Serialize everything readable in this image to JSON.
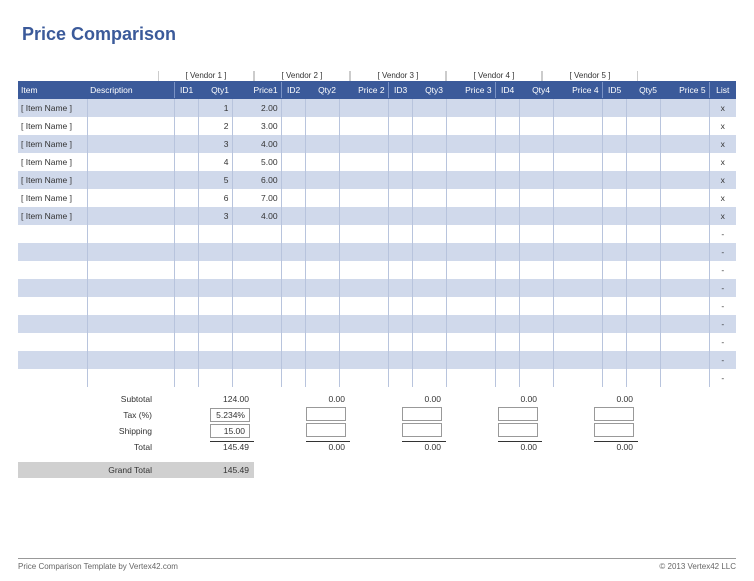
{
  "title": "Price Comparison",
  "vendors": [
    {
      "label": "[ Vendor 1 ]",
      "id_h": "ID1",
      "qty_h": "Qty1",
      "price_h": "Price1"
    },
    {
      "label": "[ Vendor 2 ]",
      "id_h": "ID2",
      "qty_h": "Qty2",
      "price_h": "Price 2"
    },
    {
      "label": "[ Vendor 3 ]",
      "id_h": "ID3",
      "qty_h": "Qty3",
      "price_h": "Price 3"
    },
    {
      "label": "[ Vendor 4 ]",
      "id_h": "ID4",
      "qty_h": "Qty4",
      "price_h": "Price 4"
    },
    {
      "label": "[ Vendor 5 ]",
      "id_h": "ID5",
      "qty_h": "Qty5",
      "price_h": "Price 5"
    }
  ],
  "headers": {
    "item": "Item",
    "desc": "Description",
    "list": "List"
  },
  "col_widths": {
    "item": 62,
    "desc": 78,
    "id": 22,
    "qty": 30,
    "price": 44,
    "list": 24
  },
  "rows": [
    {
      "item": "[ Item Name ]",
      "desc": "",
      "v": [
        {
          "id": "",
          "qty": "1",
          "price": "2.00"
        },
        {},
        {},
        {},
        {}
      ],
      "list": "x"
    },
    {
      "item": "[ Item Name ]",
      "desc": "",
      "v": [
        {
          "id": "",
          "qty": "2",
          "price": "3.00"
        },
        {},
        {},
        {},
        {}
      ],
      "list": "x"
    },
    {
      "item": "[ Item Name ]",
      "desc": "",
      "v": [
        {
          "id": "",
          "qty": "3",
          "price": "4.00"
        },
        {},
        {},
        {},
        {}
      ],
      "list": "x"
    },
    {
      "item": "[ Item Name ]",
      "desc": "",
      "v": [
        {
          "id": "",
          "qty": "4",
          "price": "5.00"
        },
        {},
        {},
        {},
        {}
      ],
      "list": "x"
    },
    {
      "item": "[ Item Name ]",
      "desc": "",
      "v": [
        {
          "id": "",
          "qty": "5",
          "price": "6.00"
        },
        {},
        {},
        {},
        {}
      ],
      "list": "x"
    },
    {
      "item": "[ Item Name ]",
      "desc": "",
      "v": [
        {
          "id": "",
          "qty": "6",
          "price": "7.00"
        },
        {},
        {},
        {},
        {}
      ],
      "list": "x"
    },
    {
      "item": "[ Item Name ]",
      "desc": "",
      "v": [
        {
          "id": "",
          "qty": "3",
          "price": "4.00"
        },
        {},
        {},
        {},
        {}
      ],
      "list": "x"
    },
    {
      "item": "",
      "desc": "",
      "v": [
        {},
        {},
        {},
        {},
        {}
      ],
      "list": "-"
    },
    {
      "item": "",
      "desc": "",
      "v": [
        {},
        {},
        {},
        {},
        {}
      ],
      "list": "-"
    },
    {
      "item": "",
      "desc": "",
      "v": [
        {},
        {},
        {},
        {},
        {}
      ],
      "list": "-"
    },
    {
      "item": "",
      "desc": "",
      "v": [
        {},
        {},
        {},
        {},
        {}
      ],
      "list": "-"
    },
    {
      "item": "",
      "desc": "",
      "v": [
        {},
        {},
        {},
        {},
        {}
      ],
      "list": "-"
    },
    {
      "item": "",
      "desc": "",
      "v": [
        {},
        {},
        {},
        {},
        {}
      ],
      "list": "-"
    },
    {
      "item": "",
      "desc": "",
      "v": [
        {},
        {},
        {},
        {},
        {}
      ],
      "list": "-"
    },
    {
      "item": "",
      "desc": "",
      "v": [
        {},
        {},
        {},
        {},
        {}
      ],
      "list": "-"
    },
    {
      "item": "",
      "desc": "",
      "v": [
        {},
        {},
        {},
        {},
        {}
      ],
      "list": "-"
    }
  ],
  "summary": {
    "labels": {
      "subtotal": "Subtotal",
      "tax": "Tax (%)",
      "shipping": "Shipping",
      "total": "Total",
      "grand": "Grand Total"
    },
    "subtotal": [
      "124.00",
      "0.00",
      "0.00",
      "0.00",
      "0.00"
    ],
    "tax": [
      "5.234%",
      "",
      "",
      "",
      ""
    ],
    "shipping": [
      "15.00",
      "",
      "",
      "",
      ""
    ],
    "total": [
      "145.49",
      "0.00",
      "0.00",
      "0.00",
      "0.00"
    ],
    "grand_total": "145.49"
  },
  "footer": {
    "left": "Price Comparison Template by Vertex42.com",
    "right": "© 2013 Vertex42 LLC"
  },
  "colors": {
    "header_bg": "#3b5a9a",
    "row_odd": "#d0d9eb",
    "row_even": "#ffffff",
    "title": "#3b5a9a",
    "grand_bg": "#d0d0d0"
  }
}
